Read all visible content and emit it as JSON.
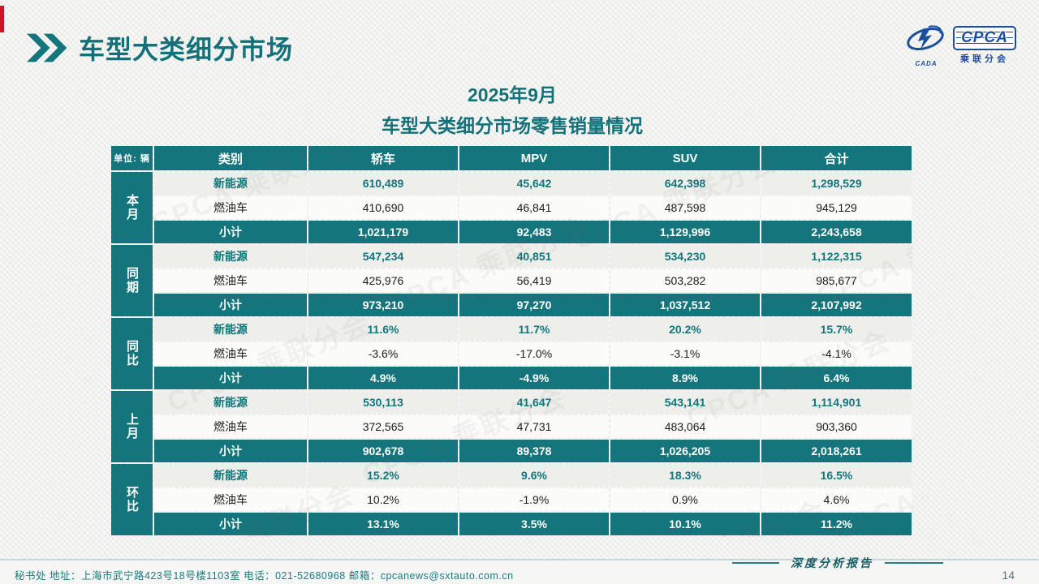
{
  "page": {
    "title": "车型大类细分市场",
    "subtitle_line1": "2025年9月",
    "subtitle_line2": "车型大类细分市场零售销量情况",
    "footer_left": "秘书处   地址：上海市武宁路423号18号楼1103室  电话：021-52680968   邮箱：cpcanews@sxtauto.com.cn",
    "footer_right": "深度分析报告",
    "page_number": "14"
  },
  "logo": {
    "text": "CPCA",
    "subtext": "乘联分会",
    "mark_text": "CADA"
  },
  "watermark": {
    "text": "CPCA 乘联分会"
  },
  "colors": {
    "teal": "#15757c",
    "title_teal": "#14717a",
    "logo_blue": "#1b4e9b",
    "red_accent": "#cf1322",
    "nev_row_bg": "#eeeeeb",
    "fuel_row_bg": "#fbfbfa"
  },
  "table": {
    "unit_label": "单位: 辆",
    "columns": [
      "类别",
      "轿车",
      "MPV",
      "SUV",
      "合计"
    ],
    "groups": [
      {
        "label": "本月",
        "rows": [
          {
            "type": "nev",
            "label": "新能源",
            "values": [
              "610,489",
              "45,642",
              "642,398",
              "1,298,529"
            ]
          },
          {
            "type": "fuel",
            "label": "燃油车",
            "values": [
              "410,690",
              "46,841",
              "487,598",
              "945,129"
            ]
          },
          {
            "type": "subtotal",
            "label": "小计",
            "values": [
              "1,021,179",
              "92,483",
              "1,129,996",
              "2,243,658"
            ]
          }
        ]
      },
      {
        "label": "同期",
        "rows": [
          {
            "type": "nev",
            "label": "新能源",
            "values": [
              "547,234",
              "40,851",
              "534,230",
              "1,122,315"
            ]
          },
          {
            "type": "fuel",
            "label": "燃油车",
            "values": [
              "425,976",
              "56,419",
              "503,282",
              "985,677"
            ]
          },
          {
            "type": "subtotal",
            "label": "小计",
            "values": [
              "973,210",
              "97,270",
              "1,037,512",
              "2,107,992"
            ]
          }
        ]
      },
      {
        "label": "同比",
        "rows": [
          {
            "type": "nev",
            "label": "新能源",
            "values": [
              "11.6%",
              "11.7%",
              "20.2%",
              "15.7%"
            ]
          },
          {
            "type": "fuel",
            "label": "燃油车",
            "values": [
              "-3.6%",
              "-17.0%",
              "-3.1%",
              "-4.1%"
            ]
          },
          {
            "type": "subtotal",
            "label": "小计",
            "values": [
              "4.9%",
              "-4.9%",
              "8.9%",
              "6.4%"
            ]
          }
        ]
      },
      {
        "label": "上月",
        "rows": [
          {
            "type": "nev",
            "label": "新能源",
            "values": [
              "530,113",
              "41,647",
              "543,141",
              "1,114,901"
            ]
          },
          {
            "type": "fuel",
            "label": "燃油车",
            "values": [
              "372,565",
              "47,731",
              "483,064",
              "903,360"
            ]
          },
          {
            "type": "subtotal",
            "label": "小计",
            "values": [
              "902,678",
              "89,378",
              "1,026,205",
              "2,018,261"
            ]
          }
        ]
      },
      {
        "label": "环比",
        "rows": [
          {
            "type": "nev",
            "label": "新能源",
            "values": [
              "15.2%",
              "9.6%",
              "18.3%",
              "16.5%"
            ]
          },
          {
            "type": "fuel",
            "label": "燃油车",
            "values": [
              "10.2%",
              "-1.9%",
              "0.9%",
              "4.6%"
            ]
          },
          {
            "type": "subtotal",
            "label": "小计",
            "values": [
              "13.1%",
              "3.5%",
              "10.1%",
              "11.2%"
            ]
          }
        ]
      }
    ]
  }
}
